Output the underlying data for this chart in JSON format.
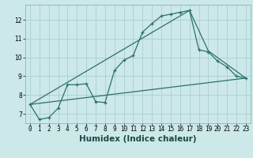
{
  "xlabel": "Humidex (Indice chaleur)",
  "bg_color": "#cce8e8",
  "grid_color": "#aad0d0",
  "line_color": "#2d7068",
  "xlim": [
    -0.5,
    23.5
  ],
  "ylim": [
    6.5,
    12.8
  ],
  "xticks": [
    0,
    1,
    2,
    3,
    4,
    5,
    6,
    7,
    8,
    9,
    10,
    11,
    12,
    13,
    14,
    15,
    16,
    17,
    18,
    19,
    20,
    21,
    22,
    23
  ],
  "yticks": [
    7,
    8,
    9,
    10,
    11,
    12
  ],
  "line1_x": [
    0,
    1,
    2,
    3,
    4,
    5,
    6,
    7,
    8,
    9,
    10,
    11,
    12,
    13,
    14,
    15,
    16,
    17,
    18,
    19,
    20,
    21,
    22,
    23
  ],
  "line1_y": [
    7.5,
    6.7,
    6.8,
    7.3,
    8.55,
    8.55,
    8.6,
    7.65,
    7.6,
    9.3,
    9.85,
    10.1,
    11.35,
    11.8,
    12.2,
    12.3,
    12.4,
    12.5,
    10.4,
    10.3,
    9.8,
    9.5,
    9.0,
    8.9
  ],
  "line2_x": [
    0,
    17,
    19,
    23
  ],
  "line2_y": [
    7.5,
    12.5,
    10.35,
    8.9
  ],
  "line3_x": [
    0,
    23
  ],
  "line3_y": [
    7.5,
    8.9
  ],
  "font_size_label": 7.5,
  "font_size_tick": 5.5
}
